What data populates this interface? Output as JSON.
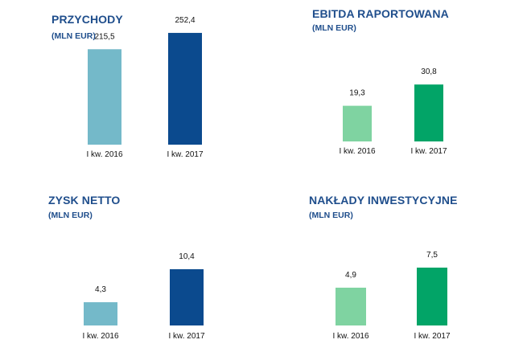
{
  "chart_data": [
    {
      "type": "bar",
      "title": "PRZYCHODY",
      "subtitle": "(MLN EUR)",
      "categories": [
        "I kw. 2016",
        "I kw. 2017"
      ],
      "values": [
        215.5,
        252.4
      ],
      "value_labels": [
        "215,5",
        "252,4"
      ],
      "colors": [
        "#74b9c9",
        "#0b4a8e"
      ],
      "grid": false,
      "legend": "none"
    },
    {
      "type": "bar",
      "title": "EBITDA RAPORTOWANA",
      "subtitle": "(MLN EUR)",
      "categories": [
        "I kw. 2016",
        "I kw. 2017"
      ],
      "values": [
        19.3,
        30.8
      ],
      "value_labels": [
        "19,3",
        "30,8"
      ],
      "colors": [
        "#7fd3a1",
        "#02a467"
      ],
      "grid": false,
      "legend": "none"
    },
    {
      "type": "bar",
      "title": "ZYSK NETTO",
      "subtitle": "(MLN EUR)",
      "categories": [
        "I kw. 2016",
        "I kw. 2017"
      ],
      "values": [
        4.3,
        10.4
      ],
      "value_labels": [
        "4,3",
        "10,4"
      ],
      "colors": [
        "#74b9c9",
        "#0b4a8e"
      ],
      "grid": false,
      "legend": "none"
    },
    {
      "type": "bar",
      "title": "NAKŁADY INWESTYCYJNE",
      "subtitle": "(MLN EUR)",
      "categories": [
        "I kw. 2016",
        "I kw. 2017"
      ],
      "values": [
        4.9,
        7.5
      ],
      "value_labels": [
        "4,9",
        "7,5"
      ],
      "colors": [
        "#7fd3a1",
        "#02a467"
      ],
      "grid": false,
      "legend": "none"
    }
  ]
}
